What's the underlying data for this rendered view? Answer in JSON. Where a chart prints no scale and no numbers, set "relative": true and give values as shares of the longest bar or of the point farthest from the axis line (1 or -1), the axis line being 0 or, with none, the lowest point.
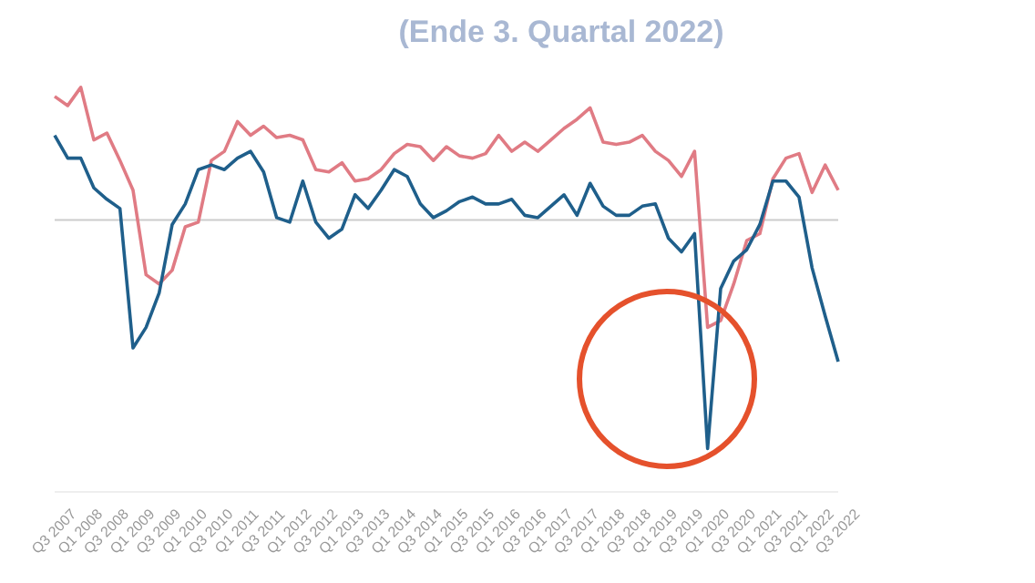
{
  "chart_data": {
    "type": "line",
    "title": "(Ende 3. Quartal 2022)",
    "relative": true,
    "categories": [
      "Q3 2007",
      null,
      "Q1 2008",
      null,
      "Q3 2008",
      null,
      "Q1 2009",
      null,
      "Q3 2009",
      null,
      "Q1 2010",
      null,
      "Q3 2010",
      null,
      "Q1 2011",
      null,
      "Q3 2011",
      null,
      "Q1 2012",
      null,
      "Q3 2012",
      null,
      "Q1 2013",
      null,
      "Q3 2013",
      null,
      "Q1 2014",
      null,
      "Q3 2014",
      null,
      "Q1 2015",
      null,
      "Q3 2015",
      null,
      "Q1 2016",
      null,
      "Q3 2016",
      null,
      "Q1 2017",
      null,
      "Q3 2017",
      null,
      "Q1 2018",
      null,
      "Q3 2018",
      null,
      "Q1 2019",
      null,
      "Q3 2019",
      null,
      "Q1 2020",
      null,
      "Q3 2020",
      null,
      "Q1 2021",
      null,
      "Q3 2021",
      null,
      "Q1 2022",
      null,
      "Q3 2022"
    ],
    "series": [
      {
        "color": "#e07b84",
        "values": [
          0.54,
          0.5,
          0.58,
          0.35,
          0.38,
          0.26,
          0.13,
          -0.24,
          -0.28,
          -0.22,
          -0.03,
          -0.01,
          0.26,
          0.3,
          0.43,
          0.37,
          0.41,
          0.36,
          0.37,
          0.35,
          0.22,
          0.21,
          0.25,
          0.17,
          0.18,
          0.22,
          0.29,
          0.33,
          0.32,
          0.26,
          0.32,
          0.28,
          0.27,
          0.29,
          0.37,
          0.3,
          0.34,
          0.3,
          0.35,
          0.4,
          0.44,
          0.49,
          0.34,
          0.33,
          0.34,
          0.37,
          0.3,
          0.26,
          0.19,
          0.3,
          -0.47,
          -0.44,
          -0.28,
          -0.09,
          -0.06,
          0.18,
          0.27,
          0.29,
          0.12,
          0.24,
          0.13
        ]
      },
      {
        "color": "#1f5f8b",
        "values": [
          0.37,
          0.27,
          0.27,
          0.14,
          0.09,
          0.05,
          -0.56,
          -0.47,
          -0.32,
          -0.02,
          0.07,
          0.22,
          0.24,
          0.22,
          0.27,
          0.3,
          0.21,
          0.01,
          -0.01,
          0.17,
          -0.01,
          -0.08,
          -0.04,
          0.11,
          0.05,
          0.13,
          0.22,
          0.19,
          0.07,
          0.01,
          0.04,
          0.08,
          0.1,
          0.07,
          0.07,
          0.09,
          0.02,
          0.01,
          0.06,
          0.11,
          0.02,
          0.16,
          0.06,
          0.02,
          0.02,
          0.06,
          0.07,
          -0.08,
          -0.14,
          -0.06,
          -1,
          -0.3,
          -0.18,
          -0.13,
          -0.02,
          0.17,
          0.17,
          0.1,
          -0.21,
          -0.42,
          -0.62
        ]
      }
    ],
    "line_style": "solid"
  }
}
